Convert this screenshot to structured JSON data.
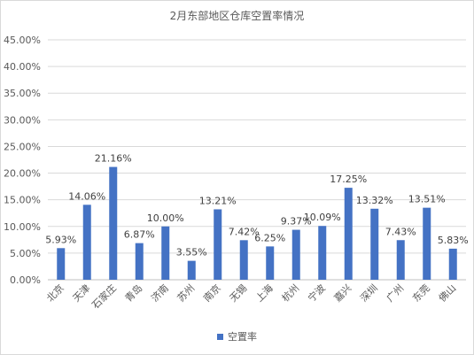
{
  "chart_data": {
    "type": "bar",
    "title": "2月东部地区仓库空置率情况",
    "categories": [
      "北京",
      "天津",
      "石家庄",
      "青岛",
      "济南",
      "苏州",
      "南京",
      "无锡",
      "上海",
      "杭州",
      "宁波",
      "嘉兴",
      "深圳",
      "广州",
      "东莞",
      "佛山"
    ],
    "series": [
      {
        "name": "空置率",
        "values": [
          5.93,
          14.06,
          21.16,
          6.87,
          10.0,
          3.55,
          13.21,
          7.42,
          6.25,
          9.37,
          10.09,
          17.25,
          13.32,
          7.43,
          13.51,
          5.83
        ],
        "labels": [
          "5.93%",
          "14.06%",
          "21.16%",
          "6.87%",
          "10.00%",
          "3.55%",
          "13.21%",
          "7.42%",
          "6.25%",
          "9.37%",
          "10.09%",
          "17.25%",
          "13.32%",
          "7.43%",
          "13.51%",
          "5.83%"
        ]
      }
    ],
    "ylim": [
      0,
      45
    ],
    "ytick_labels": [
      "0.00%",
      "5.00%",
      "10.00%",
      "15.00%",
      "20.00%",
      "25.00%",
      "30.00%",
      "35.00%",
      "40.00%",
      "45.00%"
    ],
    "grid": true,
    "legend": "bottom",
    "color": "#4472c4"
  }
}
